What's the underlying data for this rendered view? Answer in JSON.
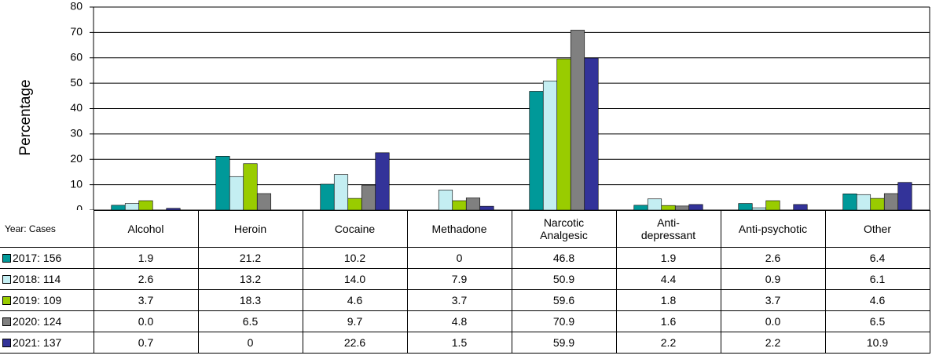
{
  "chart_data": {
    "type": "bar",
    "y_label": "Percentage",
    "table_header": "Year: Cases",
    "categories": [
      "Alcohol",
      "Heroin",
      "Cocaine",
      "Methadone",
      "Narcotic Analgesic",
      "Anti-depressant",
      "Anti-psychotic",
      "Other"
    ],
    "series": [
      {
        "name": "2017: 156",
        "color": "#009999",
        "values": [
          1.9,
          21.2,
          10.2,
          0,
          46.8,
          1.9,
          2.6,
          6.4
        ],
        "value_labels": [
          "1.9",
          "21.2",
          "10.2",
          "0",
          "46.8",
          "1.9",
          "2.6",
          "6.4"
        ]
      },
      {
        "name": "2018: 114",
        "color": "#c4eef2",
        "values": [
          2.6,
          13.2,
          14,
          7.9,
          50.9,
          4.4,
          0.9,
          6.1
        ],
        "value_labels": [
          "2.6",
          "13.2",
          "14.0",
          "7.9",
          "50.9",
          "4.4",
          "0.9",
          "6.1"
        ]
      },
      {
        "name": "2019: 109",
        "color": "#99cc00",
        "values": [
          3.7,
          18.3,
          4.6,
          3.7,
          59.6,
          1.8,
          3.7,
          4.6
        ],
        "value_labels": [
          "3.7",
          "18.3",
          "4.6",
          "3.7",
          "59.6",
          "1.8",
          "3.7",
          "4.6"
        ]
      },
      {
        "name": "2020: 124",
        "color": "#808080",
        "values": [
          0,
          6.5,
          9.7,
          4.8,
          70.9,
          1.6,
          0,
          6.5
        ],
        "value_labels": [
          "0.0",
          "6.5",
          "9.7",
          "4.8",
          "70.9",
          "1.6",
          "0.0",
          "6.5"
        ]
      },
      {
        "name": "2021:  137",
        "color": "#333399",
        "values": [
          0.7,
          0,
          22.6,
          1.5,
          59.9,
          2.2,
          2.2,
          10.9
        ],
        "value_labels": [
          "0.7",
          "0",
          "22.6",
          "1.5",
          "59.9",
          "2.2",
          "2.2",
          "10.9"
        ]
      }
    ],
    "ylim": [
      0,
      80
    ],
    "yticks": [
      0,
      10,
      20,
      30,
      40,
      50,
      60,
      70,
      80
    ],
    "grid": true
  }
}
